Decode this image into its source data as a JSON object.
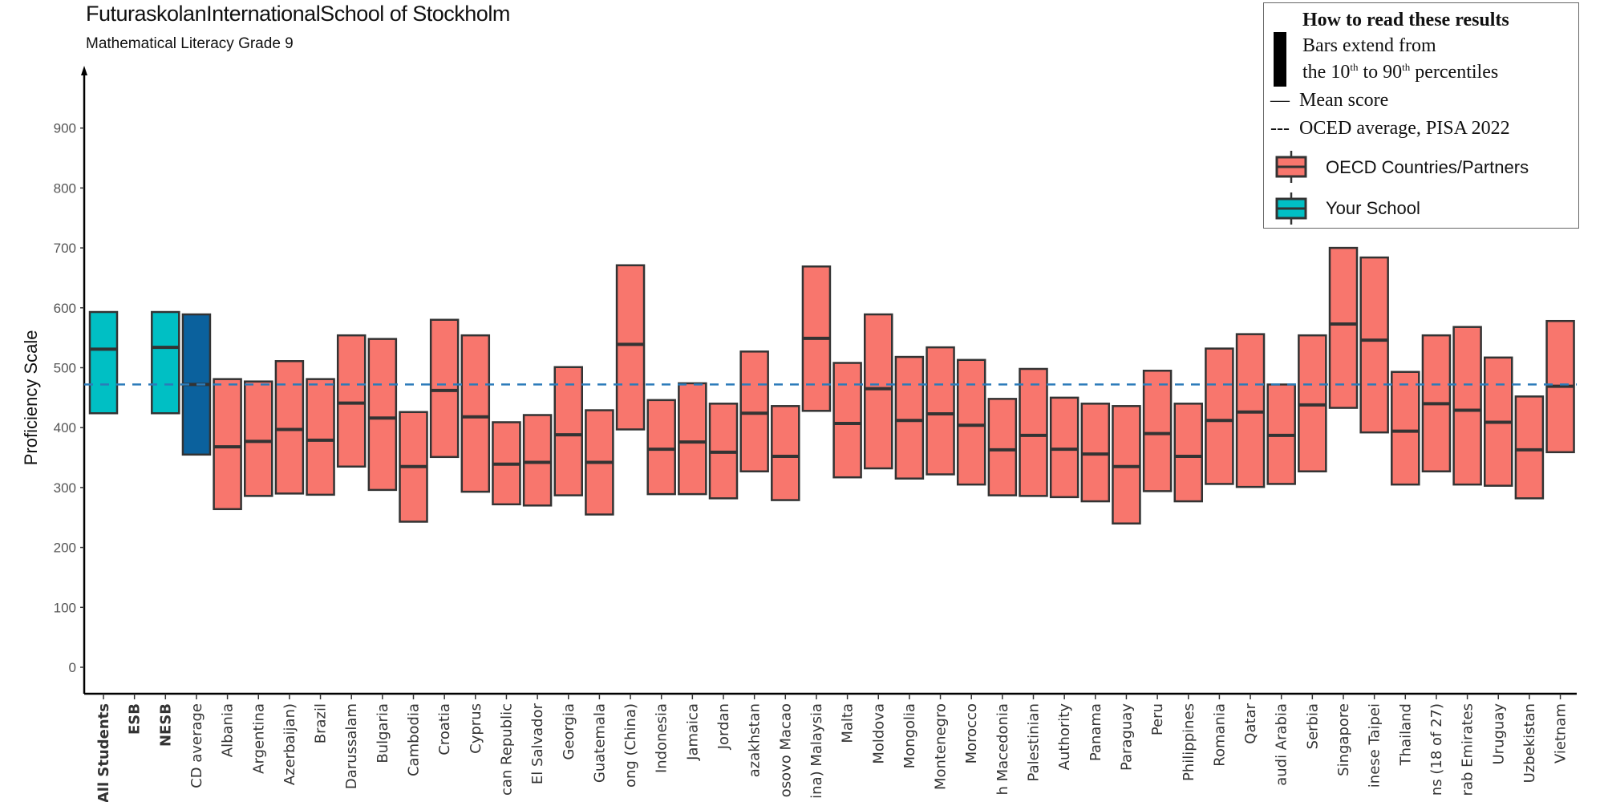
{
  "title": "FuturaskolanInternationalSchool of Stockholm",
  "subtitle": "Mathematical Literacy Grade 9",
  "legend": {
    "heading": "How to read these results",
    "line1": "Bars extend from",
    "line2_a": "the 10",
    "line2_sup1": "th",
    "line2_b": " to 90",
    "line2_sup2": "th",
    "line2_c": " percentiles",
    "mean_symbol": "—",
    "mean_label": "Mean score",
    "avg_symbol": "---",
    "avg_label": "OCED average, PISA 2022",
    "oecd_label": "OECD Countries/Partners",
    "school_label": "Your School"
  },
  "colors": {
    "school": "#00BFC4",
    "oecd_average": "#0B619D",
    "countries": "#F8766D",
    "border": "#333333",
    "reference_line": "#2B7BB9"
  },
  "chart_data": {
    "type": "bar",
    "subtype": "floating range bars (10th-90th percentile) with mean marks",
    "ylabel": "Proficiency Scale",
    "ylim": [
      0,
      900
    ],
    "yticks": [
      0,
      100,
      200,
      300,
      400,
      500,
      600,
      700,
      800,
      900
    ],
    "grid": false,
    "legend_position": "top-right",
    "reference_line": {
      "label": "OCED average, PISA 2022",
      "value": 472,
      "style": "dashed"
    },
    "categories": [
      {
        "label": "All Students",
        "bold": true,
        "group": "school",
        "p10": 424,
        "mean": 531,
        "p90": 593
      },
      {
        "label": "ESB",
        "bold": true,
        "group": "school",
        "p10": null,
        "mean": null,
        "p90": null
      },
      {
        "label": "NESB",
        "bold": true,
        "group": "school",
        "p10": 424,
        "mean": 534,
        "p90": 593
      },
      {
        "label": "CD average",
        "group": "oecd_average",
        "p10": 355,
        "mean": 472,
        "p90": 589
      },
      {
        "label": "Albania",
        "group": "countries",
        "p10": 264,
        "mean": 368,
        "p90": 481
      },
      {
        "label": "Argentina",
        "group": "countries",
        "p10": 286,
        "mean": 377,
        "p90": 477
      },
      {
        "label": "Azerbaijan)",
        "group": "countries",
        "p10": 290,
        "mean": 397,
        "p90": 511
      },
      {
        "label": "Brazil",
        "group": "countries",
        "p10": 288,
        "mean": 379,
        "p90": 481
      },
      {
        "label": "Darussalam",
        "group": "countries",
        "p10": 335,
        "mean": 441,
        "p90": 554
      },
      {
        "label": "Bulgaria",
        "group": "countries",
        "p10": 296,
        "mean": 416,
        "p90": 548
      },
      {
        "label": "Cambodia",
        "group": "countries",
        "p10": 243,
        "mean": 335,
        "p90": 426
      },
      {
        "label": "Croatia",
        "group": "countries",
        "p10": 351,
        "mean": 462,
        "p90": 580
      },
      {
        "label": "Cyprus",
        "group": "countries",
        "p10": 293,
        "mean": 418,
        "p90": 554
      },
      {
        "label": "can Republic",
        "group": "countries",
        "p10": 272,
        "mean": 339,
        "p90": 409
      },
      {
        "label": "El Salvador",
        "group": "countries",
        "p10": 270,
        "mean": 342,
        "p90": 421
      },
      {
        "label": "Georgia",
        "group": "countries",
        "p10": 287,
        "mean": 388,
        "p90": 501
      },
      {
        "label": "Guatemala",
        "group": "countries",
        "p10": 255,
        "mean": 342,
        "p90": 429
      },
      {
        "label": "ong (China)",
        "group": "countries",
        "p10": 397,
        "mean": 539,
        "p90": 671
      },
      {
        "label": "Indonesia",
        "group": "countries",
        "p10": 289,
        "mean": 364,
        "p90": 446
      },
      {
        "label": "Jamaica",
        "group": "countries",
        "p10": 289,
        "mean": 376,
        "p90": 474
      },
      {
        "label": "Jordan",
        "group": "countries",
        "p10": 282,
        "mean": 359,
        "p90": 440
      },
      {
        "label": "azakhstan",
        "group": "countries",
        "p10": 327,
        "mean": 424,
        "p90": 527
      },
      {
        "label": "osovo Macao",
        "group": "countries",
        "p10": 279,
        "mean": 352,
        "p90": 436
      },
      {
        "label": "ina) Malaysia",
        "group": "countries",
        "p10": 428,
        "mean": 549,
        "p90": 669
      },
      {
        "label": "Malta",
        "group": "countries",
        "p10": 317,
        "mean": 407,
        "p90": 508
      },
      {
        "label": "Moldova",
        "group": "countries",
        "p10": 332,
        "mean": 465,
        "p90": 589
      },
      {
        "label": "Mongolia",
        "group": "countries",
        "p10": 315,
        "mean": 412,
        "p90": 518
      },
      {
        "label": "Montenegro",
        "group": "countries",
        "p10": 322,
        "mean": 423,
        "p90": 534
      },
      {
        "label": "Morocco",
        "group": "countries",
        "p10": 305,
        "mean": 404,
        "p90": 513
      },
      {
        "label": "h Macedonia",
        "group": "countries",
        "p10": 287,
        "mean": 363,
        "p90": 448
      },
      {
        "label": "Palestinian",
        "group": "countries",
        "p10": 286,
        "mean": 387,
        "p90": 498
      },
      {
        "label": "Authority",
        "group": "countries",
        "p10": 284,
        "mean": 364,
        "p90": 450
      },
      {
        "label": "Panama",
        "group": "countries",
        "p10": 277,
        "mean": 356,
        "p90": 440
      },
      {
        "label": "Paraguay",
        "group": "countries",
        "p10": 240,
        "mean": 335,
        "p90": 436
      },
      {
        "label": "Peru",
        "group": "countries",
        "p10": 294,
        "mean": 390,
        "p90": 495
      },
      {
        "label": "Philippines",
        "group": "countries",
        "p10": 277,
        "mean": 352,
        "p90": 440
      },
      {
        "label": "Romania",
        "group": "countries",
        "p10": 306,
        "mean": 412,
        "p90": 532
      },
      {
        "label": "Qatar",
        "group": "countries",
        "p10": 301,
        "mean": 426,
        "p90": 556
      },
      {
        "label": "audi Arabia",
        "group": "countries",
        "p10": 306,
        "mean": 387,
        "p90": 472
      },
      {
        "label": "Serbia",
        "group": "countries",
        "p10": 327,
        "mean": 438,
        "p90": 554
      },
      {
        "label": "Singapore",
        "group": "countries",
        "p10": 433,
        "mean": 573,
        "p90": 700
      },
      {
        "label": "inese Taipei",
        "group": "countries",
        "p10": 392,
        "mean": 546,
        "p90": 684
      },
      {
        "label": "Thailand",
        "group": "countries",
        "p10": 305,
        "mean": 394,
        "p90": 493
      },
      {
        "label": "ns (18 of 27)",
        "group": "countries",
        "p10": 327,
        "mean": 440,
        "p90": 554
      },
      {
        "label": "rab Emirates",
        "group": "countries",
        "p10": 305,
        "mean": 429,
        "p90": 568
      },
      {
        "label": "Uruguay",
        "group": "countries",
        "p10": 303,
        "mean": 409,
        "p90": 517
      },
      {
        "label": "Uzbekistan",
        "group": "countries",
        "p10": 282,
        "mean": 363,
        "p90": 452
      },
      {
        "label": "Vietnam",
        "group": "countries",
        "p10": 359,
        "mean": 469,
        "p90": 578
      }
    ]
  }
}
